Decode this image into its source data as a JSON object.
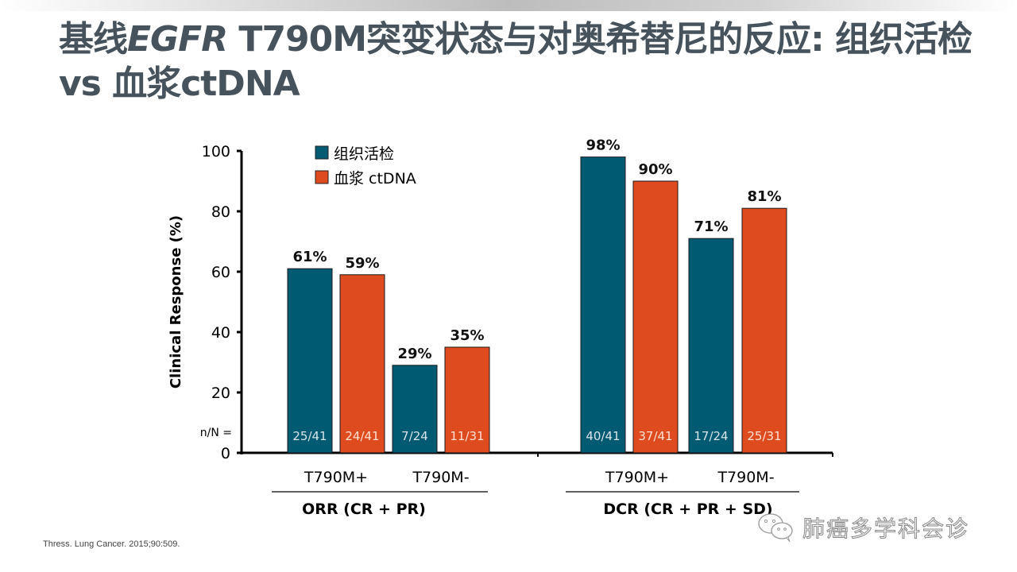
{
  "slide": {
    "title_parts": [
      {
        "text": "基线",
        "italic": false
      },
      {
        "text": "EGFR",
        "italic": true
      },
      {
        "text": " T790M突变状态与对奥希替尼的反应: 组织活检 vs 血浆ctDNA",
        "italic": false
      }
    ],
    "citation": "Thress. Lung Cancer. 2015;90:509.",
    "watermark": "肺癌多学科会诊",
    "watermark_icon": "wechat-icon"
  },
  "chart_data": {
    "type": "bar",
    "title": "",
    "xlabel": "",
    "ylabel": "Clinical Response (%)",
    "ylim": [
      0,
      100
    ],
    "yticks": [
      0,
      20,
      40,
      60,
      80,
      100
    ],
    "grid": false,
    "legend_position": "top-left",
    "nN_label": "n/N =",
    "colors": {
      "tissue": "#005a72",
      "plasma": "#dd4b1f"
    },
    "series": [
      {
        "key": "tissue",
        "name": "组织活检"
      },
      {
        "key": "plasma",
        "name": "血浆 ctDNA"
      }
    ],
    "groups": [
      {
        "label": "ORR (CR + PR)",
        "categories": [
          {
            "label": "T790M+",
            "bars": [
              {
                "series": "tissue",
                "value": 61,
                "label": "61%",
                "nN": "25/41"
              },
              {
                "series": "plasma",
                "value": 59,
                "label": "59%",
                "nN": "24/41"
              }
            ]
          },
          {
            "label": "T790M-",
            "bars": [
              {
                "series": "tissue",
                "value": 29,
                "label": "29%",
                "nN": "7/24"
              },
              {
                "series": "plasma",
                "value": 35,
                "label": "35%",
                "nN": "11/31"
              }
            ]
          }
        ]
      },
      {
        "label": "DCR (CR + PR + SD)",
        "categories": [
          {
            "label": "T790M+",
            "bars": [
              {
                "series": "tissue",
                "value": 98,
                "label": "98%",
                "nN": "40/41"
              },
              {
                "series": "plasma",
                "value": 90,
                "label": "90%",
                "nN": "37/41"
              }
            ]
          },
          {
            "label": "T790M-",
            "bars": [
              {
                "series": "tissue",
                "value": 71,
                "label": "71%",
                "nN": "17/24"
              },
              {
                "series": "plasma",
                "value": 81,
                "label": "81%",
                "nN": "25/31"
              }
            ]
          }
        ]
      }
    ]
  }
}
